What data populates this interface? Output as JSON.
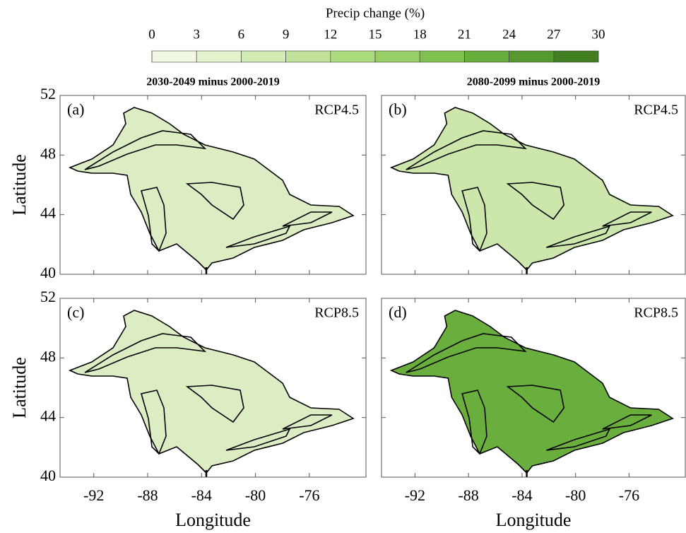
{
  "colorbar": {
    "label": "Precip change (%)",
    "ticks": [
      0,
      3,
      6,
      9,
      12,
      15,
      18,
      21,
      24,
      27,
      30
    ],
    "colors": [
      "#f2f8e6",
      "#e4f2cf",
      "#d4ebb5",
      "#c2e29a",
      "#addb80",
      "#97cf66",
      "#80c04e",
      "#69ae3c",
      "#55992f",
      "#427f23"
    ]
  },
  "columns": [
    "2030-2049 minus 2000-2019",
    "2080-2099 minus 2000-2019"
  ],
  "axes": {
    "xlabel": "Longitude",
    "ylabel": "Latitude",
    "xlim": [
      -94.5,
      -71.8
    ],
    "xticks": [
      -92,
      -88,
      -84,
      -80,
      -76
    ],
    "ylim": [
      40,
      52
    ],
    "yticks": [
      40,
      44,
      48,
      52
    ]
  },
  "panels": [
    {
      "label": "(a)",
      "scenario": "RCP4.5",
      "fill": "#dcedc3"
    },
    {
      "label": "(b)",
      "scenario": "RCP4.5",
      "fill": "#cde6ab"
    },
    {
      "label": "(c)",
      "scenario": "RCP8.5",
      "fill": "#dcedc3"
    },
    {
      "label": "(d)",
      "scenario": "RCP8.5",
      "fill": "#6aae3d"
    }
  ]
}
